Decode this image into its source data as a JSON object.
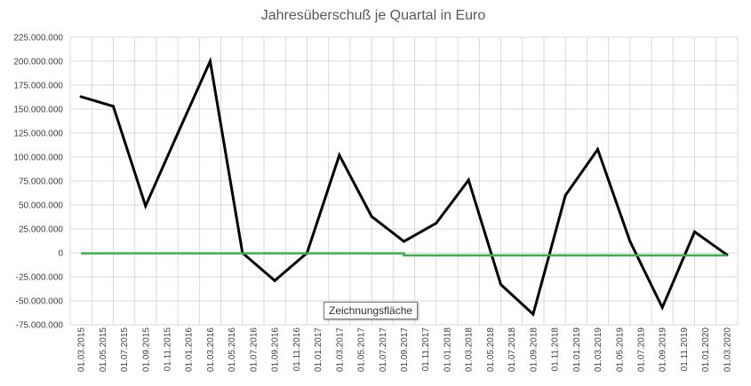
{
  "chart_data": {
    "type": "line",
    "title": "Jahresüberschuß je Quartal in Euro",
    "xlabel": "",
    "ylabel": "",
    "ylim": [
      -75000000,
      225000000
    ],
    "ytick_step": 25000000,
    "ytick_labels": [
      "225.000.000",
      "200.000.000",
      "175.000.000",
      "150.000.000",
      "125.000.000",
      "100.000.000",
      "75.000.000",
      "50.000.000",
      "25.000.000",
      "0",
      "-25.000.000",
      "-50.000.000",
      "-75.000.000"
    ],
    "categories": [
      "01.03.2015",
      "01.05.2015",
      "01.07.2015",
      "01.09.2015",
      "01.11.2015",
      "01.01.2016",
      "01.03.2016",
      "01.05.2016",
      "01.07.2016",
      "01.09.2016",
      "01.11.2016",
      "01.01.2017",
      "01.03.2017",
      "01.05.2017",
      "01.07.2017",
      "01.09.2017",
      "01.11.2017",
      "01.01.2018",
      "01.03.2018",
      "01.05.2018",
      "01.07.2018",
      "01.09.2018",
      "01.11.2018",
      "01.01.2019",
      "01.03.2019",
      "01.05.2019",
      "01.07.2019",
      "01.09.2019",
      "01.11.2019",
      "01.01.2020",
      "01.03.2020"
    ],
    "series": [
      {
        "color": "#000000",
        "points": [
          {
            "x": 0,
            "y": 163000000
          },
          {
            "x": 1.5,
            "y": 153000000
          },
          {
            "x": 3,
            "y": 49000000
          },
          {
            "x": 4.5,
            "y": 125000000
          },
          {
            "x": 6,
            "y": 200000000
          },
          {
            "x": 7.5,
            "y": 0
          },
          {
            "x": 9,
            "y": -29000000
          },
          {
            "x": 10.5,
            "y": 0
          },
          {
            "x": 12,
            "y": 102000000
          },
          {
            "x": 13.5,
            "y": 38000000
          },
          {
            "x": 15,
            "y": 12000000
          },
          {
            "x": 16.5,
            "y": 31000000
          },
          {
            "x": 18,
            "y": 76000000
          },
          {
            "x": 19.5,
            "y": -33000000
          },
          {
            "x": 21,
            "y": -64000000
          },
          {
            "x": 22.5,
            "y": 60000000
          },
          {
            "x": 24,
            "y": 108000000
          },
          {
            "x": 25.5,
            "y": 12000000
          },
          {
            "x": 27,
            "y": -57000000
          },
          {
            "x": 28.5,
            "y": 22000000
          },
          {
            "x": 30,
            "y": -2000000
          }
        ]
      },
      {
        "color": "#3cb34a",
        "points": [
          {
            "x": 0,
            "y": -500000
          },
          {
            "x": 15,
            "y": -500000
          },
          {
            "x": 15,
            "y": -2500000
          },
          {
            "x": 30,
            "y": -2500000
          }
        ]
      }
    ],
    "grid": true,
    "legend": "none"
  },
  "tooltip": "Zeichnungsfläche"
}
